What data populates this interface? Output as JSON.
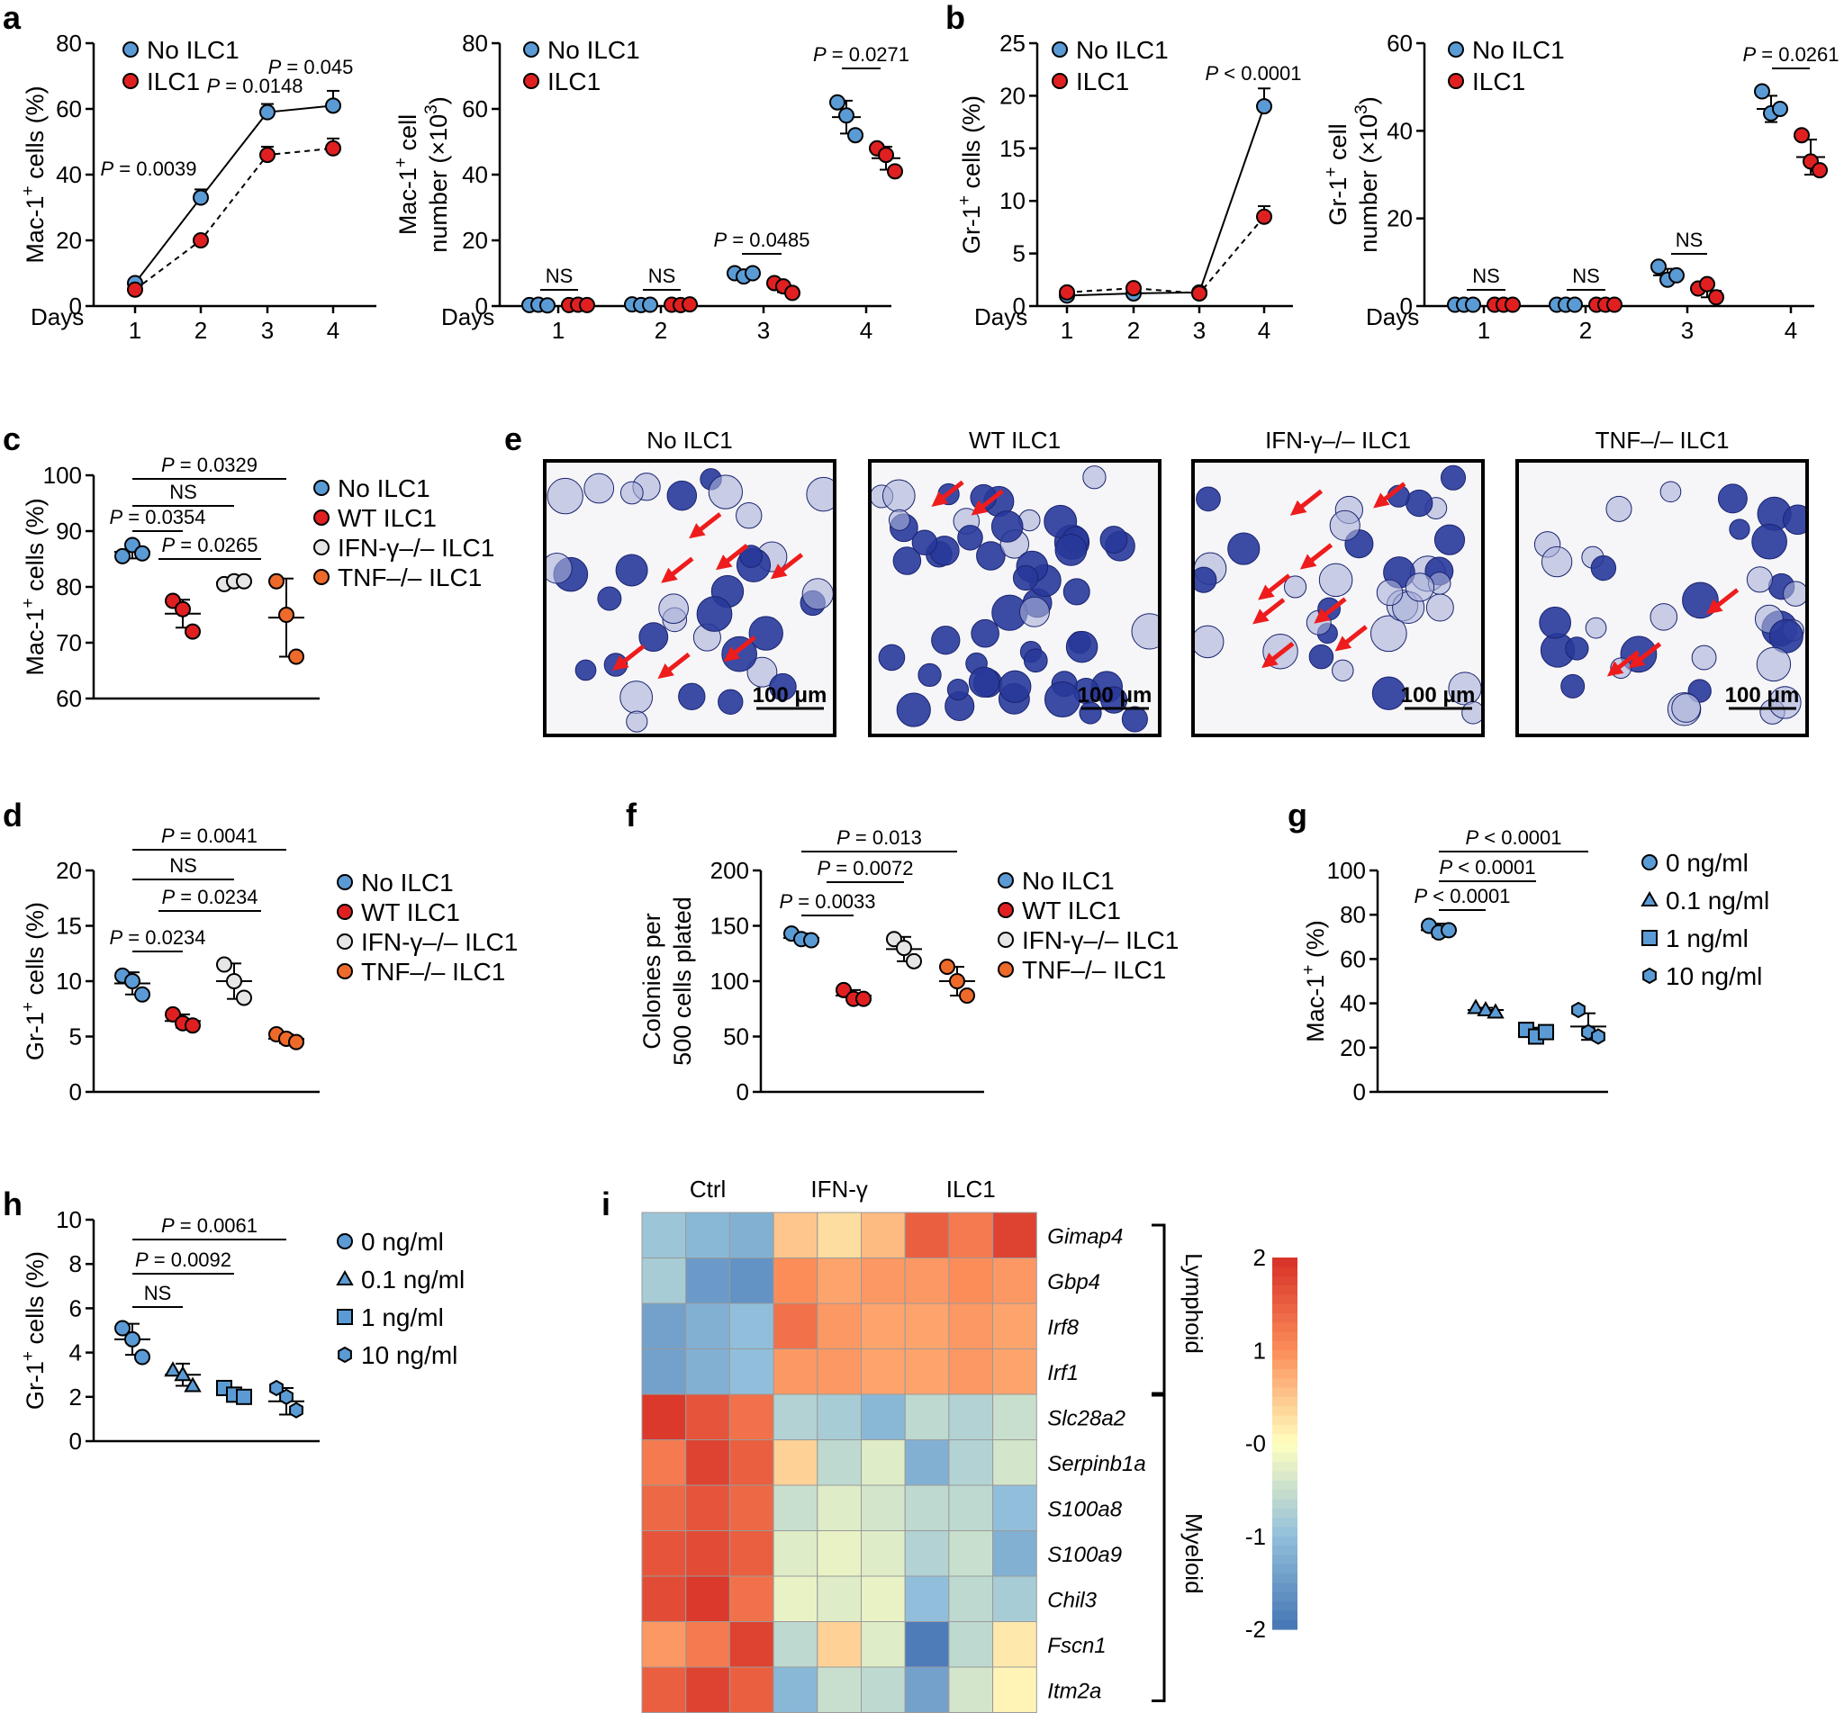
{
  "colors": {
    "no_ilc1": "#5b9bd5",
    "ilc1": "#e02020",
    "ifng_ko": "#e6e6e6",
    "tnf_ko": "#ee6a2a",
    "dose": "#5b9bd5",
    "arrow": "#ee1c1c",
    "cell": "#28389a"
  },
  "panels": {
    "a": "a",
    "b": "b",
    "c": "c",
    "d": "d",
    "e": "e",
    "f": "f",
    "g": "g",
    "h": "h",
    "i": "i"
  },
  "chart_data": [
    {
      "id": "a-left",
      "type": "line",
      "ylabel": "Mac-1+ cells (%)",
      "xlabel": "Days",
      "ylim": [
        0,
        80
      ],
      "yticks": [
        "0",
        "20",
        "40",
        "60",
        "80"
      ],
      "categories": [
        "1",
        "2",
        "3",
        "4"
      ],
      "legend": [
        "No ILC1",
        "ILC1"
      ],
      "series": [
        {
          "name": "No ILC1",
          "values": [
            7,
            33,
            59,
            61
          ],
          "err": [
            0.8,
            2.5,
            2.5,
            4.5
          ]
        },
        {
          "name": "ILC1",
          "values": [
            5,
            20,
            46,
            48
          ],
          "err": [
            0.5,
            1,
            2.5,
            3
          ]
        }
      ],
      "pvalues": [
        "P = 0.0039",
        "P = 0.0148",
        "P = 0.045"
      ]
    },
    {
      "id": "a-right",
      "type": "scatter",
      "ylabel": "Mac-1+ cell number (x10^3)",
      "xlabel": "Days",
      "ylim": [
        0,
        80
      ],
      "yticks": [
        "0",
        "20",
        "40",
        "60",
        "80"
      ],
      "categories": [
        "1",
        "2",
        "3",
        "4"
      ],
      "legend": [
        "No ILC1",
        "ILC1"
      ],
      "series": [
        {
          "name": "No ILC1",
          "points": [
            [
              0.3,
              0.4,
              0.2
            ],
            [
              0.5,
              0.3,
              0.4
            ],
            [
              10,
              9,
              10
            ],
            [
              62,
              58,
              52
            ]
          ],
          "means": [
            0.3,
            0.4,
            9.7,
            57.5
          ],
          "sd": [
            0.1,
            0.1,
            0.6,
            5
          ]
        },
        {
          "name": "ILC1",
          "points": [
            [
              0.3,
              0.4,
              0.3
            ],
            [
              0.4,
              0.3,
              0.5
            ],
            [
              7,
              6,
              4
            ],
            [
              48,
              46,
              41
            ]
          ],
          "means": [
            0.3,
            0.4,
            5.7,
            45
          ],
          "sd": [
            0.1,
            0.1,
            1.5,
            3.5
          ]
        }
      ],
      "pvalues": [
        "NS",
        "NS",
        "P = 0.0485",
        "P = 0.0271"
      ]
    },
    {
      "id": "b-left",
      "type": "line",
      "ylabel": "Gr-1+ cells (%)",
      "xlabel": "Days",
      "ylim": [
        0,
        25
      ],
      "yticks": [
        "0",
        "5",
        "10",
        "15",
        "20",
        "25"
      ],
      "categories": [
        "1",
        "2",
        "3",
        "4"
      ],
      "legend": [
        "No ILC1",
        "ILC1"
      ],
      "series": [
        {
          "name": "No ILC1",
          "values": [
            1,
            1.2,
            1.3,
            19
          ],
          "err": [
            0.2,
            0.2,
            0.2,
            1.7
          ]
        },
        {
          "name": "ILC1",
          "values": [
            1.3,
            1.7,
            1.2,
            8.5
          ],
          "err": [
            0.2,
            0.2,
            0.2,
            1
          ]
        }
      ],
      "pvalues": [
        "P < 0.0001"
      ]
    },
    {
      "id": "b-right",
      "type": "scatter",
      "ylabel": "Gr-1+ cell number (x10^3)",
      "xlabel": "Days",
      "ylim": [
        0,
        60
      ],
      "yticks": [
        "0",
        "20",
        "40",
        "60"
      ],
      "categories": [
        "1",
        "2",
        "3",
        "4"
      ],
      "legend": [
        "No ILC1",
        "ILC1"
      ],
      "series": [
        {
          "name": "No ILC1",
          "points": [
            [
              0.3,
              0.3,
              0.3
            ],
            [
              0.3,
              0.3,
              0.3
            ],
            [
              9,
              6,
              7
            ],
            [
              49,
              44,
              45
            ]
          ],
          "means": [
            0.3,
            0.3,
            7,
            45
          ],
          "sd": [
            0.1,
            0.1,
            1.5,
            3
          ]
        },
        {
          "name": "ILC1",
          "points": [
            [
              0.3,
              0.3,
              0.3
            ],
            [
              0.3,
              0.3,
              0.3
            ],
            [
              4,
              5,
              2
            ],
            [
              39,
              33,
              31
            ]
          ],
          "means": [
            0.3,
            0.3,
            3.5,
            34
          ],
          "sd": [
            0.1,
            0.1,
            1.5,
            4
          ]
        }
      ],
      "pvalues": [
        "NS",
        "NS",
        "NS",
        "P = 0.0261"
      ]
    },
    {
      "id": "c",
      "type": "scatter",
      "ylabel": "Mac-1+ cells (%)",
      "ylim": [
        60,
        100
      ],
      "yticks": [
        "60",
        "70",
        "80",
        "90",
        "100"
      ],
      "groups": [
        "No ILC1",
        "WT ILC1",
        "IFN-γ–/– ILC1",
        "TNF–/– ILC1"
      ],
      "values": [
        [
          85.5,
          87.5,
          86
        ],
        [
          77.5,
          76,
          72
        ],
        [
          80.5,
          81,
          81
        ],
        [
          81,
          75,
          67.5
        ]
      ],
      "means": [
        86.3,
        75.2,
        80.8,
        74.5
      ],
      "sd": [
        1.2,
        2.5,
        0.3,
        7
      ],
      "pvalues": [
        "P = 0.0329",
        "NS",
        "P = 0.0354",
        "P = 0.0265"
      ]
    },
    {
      "id": "d",
      "type": "scatter",
      "ylabel": "Gr-1+ cells (%)",
      "ylim": [
        0,
        20
      ],
      "yticks": [
        "0",
        "5",
        "10",
        "15",
        "20"
      ],
      "groups": [
        "No ILC1",
        "WT ILC1",
        "IFN-γ–/– ILC1",
        "TNF–/– ILC1"
      ],
      "values": [
        [
          10.5,
          10,
          8.8
        ],
        [
          7,
          6.2,
          6
        ],
        [
          11.5,
          10,
          8.5
        ],
        [
          5.2,
          4.8,
          4.5
        ]
      ],
      "means": [
        9.8,
        6.4,
        10,
        4.8
      ],
      "sd": [
        1,
        0.6,
        1.6,
        0.4
      ],
      "pvalues": [
        "P = 0.0041",
        "NS",
        "P = 0.0234",
        "P = 0.0234"
      ]
    },
    {
      "id": "f",
      "type": "scatter",
      "ylabel": "Colonies per 500 cells plated",
      "ylim": [
        0,
        200
      ],
      "yticks": [
        "0",
        "50",
        "100",
        "150",
        "200"
      ],
      "groups": [
        "No ILC1",
        "WT ILC1",
        "IFN-γ–/– ILC1",
        "TNF–/– ILC1"
      ],
      "values": [
        [
          143,
          138,
          137
        ],
        [
          92,
          84,
          84
        ],
        [
          138,
          130,
          118
        ],
        [
          113,
          100,
          87
        ]
      ],
      "means": [
        139,
        87,
        129,
        100
      ],
      "sd": [
        4,
        5,
        11,
        13
      ],
      "pvalues": [
        "P = 0.013",
        "P = 0.0072",
        "P = 0.0033"
      ]
    },
    {
      "id": "g",
      "type": "scatter",
      "ylabel": "Mac-1+ (%)",
      "ylim": [
        0,
        100
      ],
      "yticks": [
        "0",
        "20",
        "40",
        "60",
        "80",
        "100"
      ],
      "groups": [
        "0 ng/ml",
        "0.1 ng/ml",
        "1 ng/ml",
        "10 ng/ml"
      ],
      "values": [
        [
          75,
          72,
          73
        ],
        [
          38,
          37,
          36
        ],
        [
          28,
          25,
          27
        ],
        [
          37,
          27,
          25
        ]
      ],
      "means": [
        73,
        37,
        27,
        29.5
      ],
      "sd": [
        3,
        1,
        2,
        6
      ],
      "pvalues": [
        "P < 0.0001",
        "P < 0.0001",
        "P < 0.0001"
      ]
    },
    {
      "id": "h",
      "type": "scatter",
      "ylabel": "Gr-1+ cells (%)",
      "ylim": [
        0,
        10
      ],
      "yticks": [
        "0",
        "2",
        "4",
        "6",
        "8",
        "10"
      ],
      "groups": [
        "0 ng/ml",
        "0.1 ng/ml",
        "1 ng/ml",
        "10 ng/ml"
      ],
      "values": [
        [
          5.1,
          4.6,
          3.8
        ],
        [
          3.2,
          3.0,
          2.5
        ],
        [
          2.4,
          2.1,
          2.0
        ],
        [
          2.4,
          2.0,
          1.4
        ]
      ],
      "means": [
        4.6,
        3.0,
        2.1,
        1.8
      ],
      "sd": [
        0.7,
        0.5,
        0.3,
        0.6
      ],
      "pvalues": [
        "P = 0.0061",
        "P = 0.0092",
        "NS"
      ]
    },
    {
      "id": "i",
      "type": "heatmap",
      "column_groups": [
        "Ctrl",
        "IFN-γ",
        "ILC1"
      ],
      "genes": [
        "Gimap4",
        "Gbp4",
        "Irf8",
        "Irf1",
        "Slc28a2",
        "Serpinb1a",
        "S100a8",
        "S100a9",
        "Chil3",
        "Fscn1",
        "Itm2a"
      ],
      "values": [
        [
          -0.9,
          -1.1,
          -1.2,
          0.5,
          0.3,
          0.6,
          1.5,
          1.2,
          1.8
        ],
        [
          -0.8,
          -1.5,
          -1.6,
          1.0,
          0.8,
          0.9,
          0.9,
          1.0,
          0.9
        ],
        [
          -1.4,
          -1.2,
          -1.0,
          1.3,
          0.9,
          0.8,
          0.8,
          0.9,
          0.8
        ],
        [
          -1.4,
          -1.2,
          -1.0,
          0.9,
          0.9,
          0.8,
          0.8,
          0.9,
          0.8
        ],
        [
          1.9,
          1.6,
          1.3,
          -0.7,
          -0.8,
          -1.1,
          -0.6,
          -0.7,
          -0.5
        ],
        [
          1.2,
          1.8,
          1.5,
          0.4,
          -0.6,
          -0.3,
          -1.2,
          -0.7,
          -0.4
        ],
        [
          1.4,
          1.6,
          1.4,
          -0.5,
          -0.3,
          -0.4,
          -0.6,
          -0.6,
          -1.0
        ],
        [
          1.6,
          1.7,
          1.5,
          -0.3,
          -0.2,
          -0.3,
          -0.7,
          -0.5,
          -1.2
        ],
        [
          1.7,
          1.9,
          1.3,
          -0.2,
          -0.3,
          -0.2,
          -1.0,
          -0.6,
          -0.8
        ],
        [
          0.9,
          1.2,
          1.8,
          -0.6,
          0.4,
          -0.3,
          -1.9,
          -0.6,
          0.2
        ],
        [
          1.5,
          1.8,
          1.5,
          -1.1,
          -0.5,
          -0.6,
          -1.4,
          -0.4,
          0.1
        ]
      ],
      "annotations": [
        "Lymphoid",
        "Myeloid"
      ],
      "scale_ticks": [
        "2",
        "1",
        "-0",
        "-1",
        "-2"
      ],
      "scale_range": [
        -2,
        2
      ]
    }
  ],
  "panel_e": {
    "titles": [
      "No ILC1",
      "WT ILC1",
      "IFN-γ–/– ILC1",
      "TNF–/– ILC1"
    ],
    "scalebar": "100 μm"
  }
}
